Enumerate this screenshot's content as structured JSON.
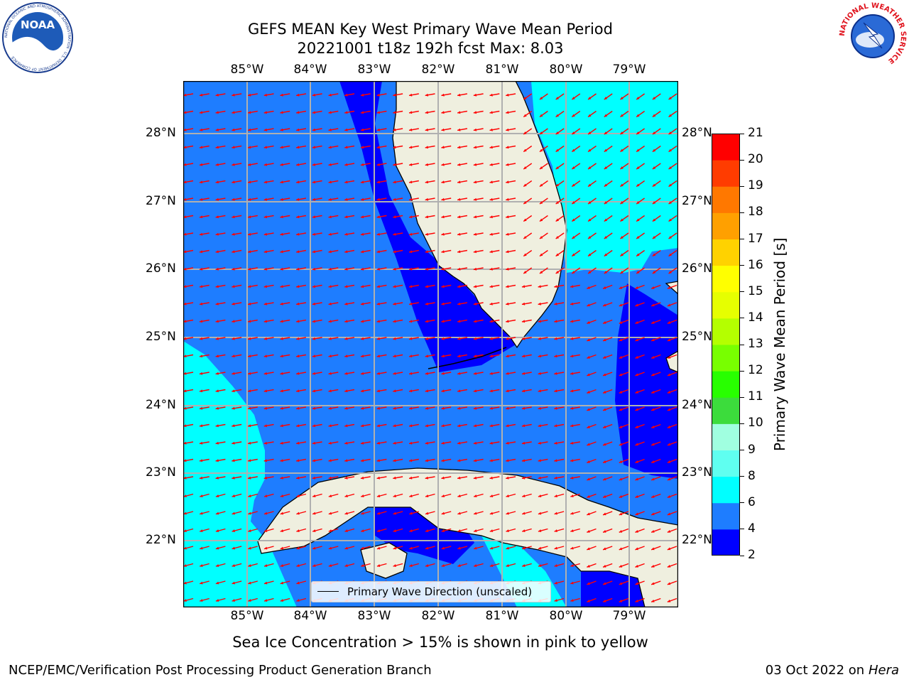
{
  "title": {
    "line1": "GEFS MEAN Key West Primary Wave Mean Period",
    "line2": "20221001 t18z 192h fcst   Max: 8.03"
  },
  "map": {
    "lon_labels": [
      "85°W",
      "84°W",
      "83°W",
      "82°W",
      "81°W",
      "80°W",
      "79°W"
    ],
    "lat_labels": [
      "28°N",
      "27°N",
      "26°N",
      "25°N",
      "24°N",
      "23°N",
      "22°N"
    ],
    "colors": {
      "land": "#efefdf",
      "level_2_4": "#0000ff",
      "level_4_6": "#1e7dff",
      "level_6_8": "#00ffff",
      "arrows": "#ff0000",
      "grid": "#b0b0b0"
    }
  },
  "legend": {
    "label": "Primary Wave Direction (unscaled)"
  },
  "colorbar": {
    "label": "Primary Wave Mean Period [s]",
    "ticks": [
      "2",
      "4",
      "6",
      "8",
      "9",
      "10",
      "11",
      "12",
      "13",
      "14",
      "15",
      "16",
      "17",
      "18",
      "19",
      "20",
      "21"
    ],
    "colors": [
      "#0000ff",
      "#1e7dff",
      "#00ffff",
      "#5ffff0",
      "#a0ffe0",
      "#3cdc3c",
      "#28ff00",
      "#78ff00",
      "#b4ff00",
      "#e6ff00",
      "#ffff00",
      "#ffd200",
      "#ffa000",
      "#ff7800",
      "#ff3c00",
      "#ff0000"
    ]
  },
  "logos": {
    "noaa_text": "NOAA",
    "noaa_ring": "NATIONAL OCEANIC AND ATMOSPHERIC ADMINISTRATION · U.S. DEPARTMENT OF COMMERCE",
    "nws_ring": "NATIONAL WEATHER SERVICE"
  },
  "caption": "Sea Ice Concentration > 15% is shown in pink to yellow",
  "footer": {
    "left": "NCEP/EMC/Verification Post Processing Product Generation Branch",
    "date": "03 Oct 2022 on ",
    "machine": "Hera"
  }
}
